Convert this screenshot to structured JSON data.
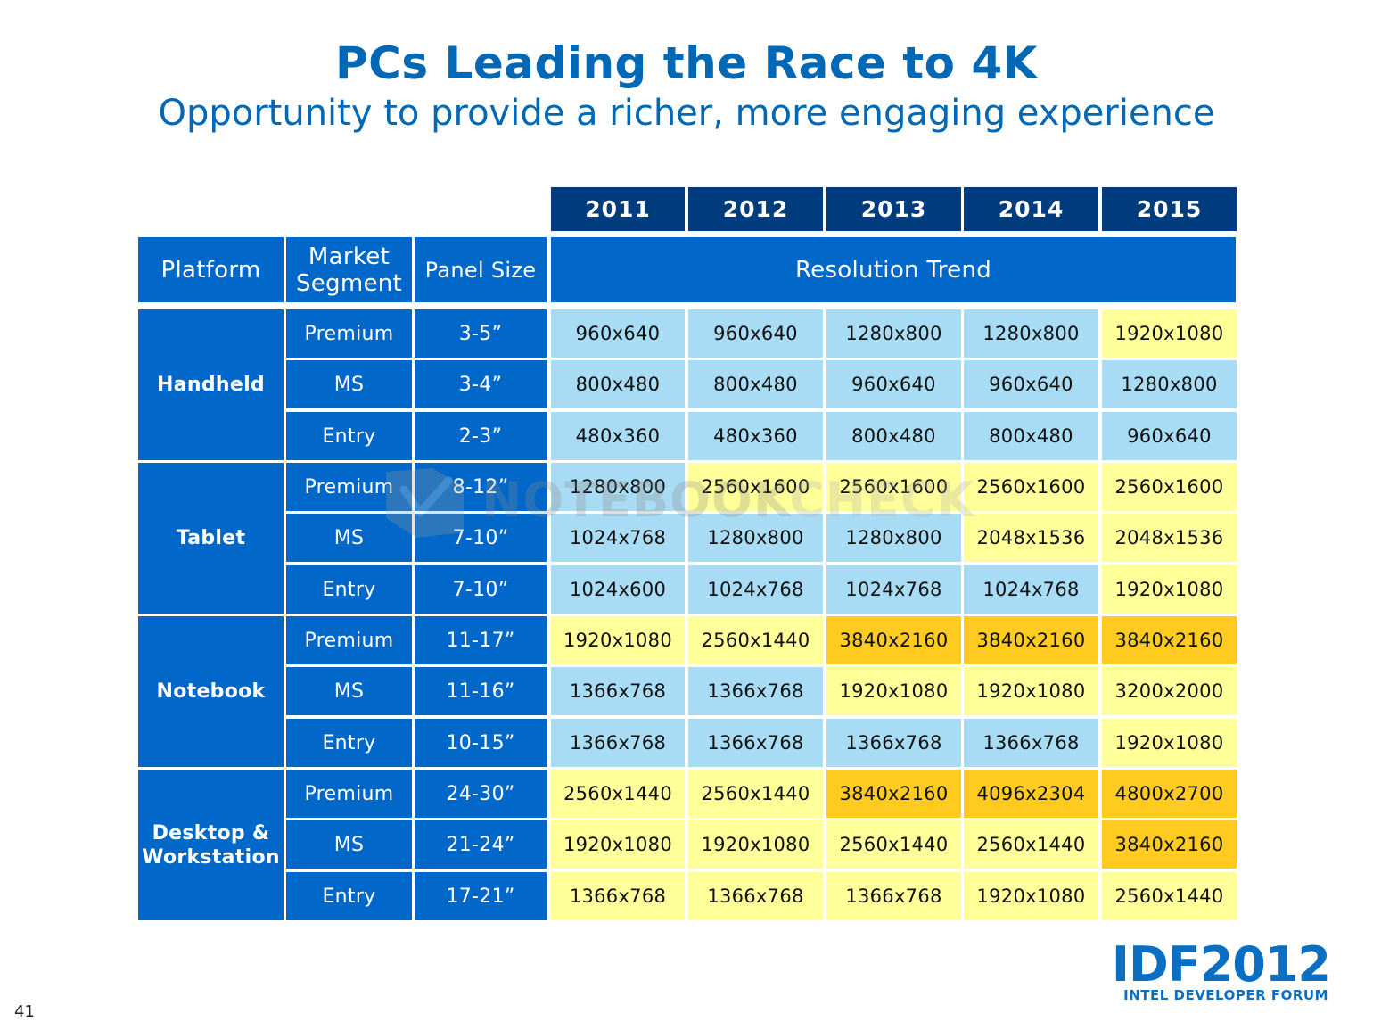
{
  "title": "PCs Leading the Race to 4K",
  "subtitle": "Opportunity to provide a richer, more engaging experience",
  "years": [
    "2011",
    "2012",
    "2013",
    "2014",
    "2015"
  ],
  "headers": {
    "platform": "Platform",
    "segment": "Market Segment",
    "panel": "Panel Size",
    "trend": "Resolution Trend"
  },
  "colors": {
    "blue": "#a8dcf4",
    "yellow": "#ffff99",
    "orange": "#ffcb21",
    "header": "#0168c9",
    "year_header": "#003c7e"
  },
  "platforms": [
    {
      "name": "Handheld",
      "rows": [
        {
          "segment": "Premium",
          "panel": "3-5”",
          "values": [
            "960x640",
            "960x640",
            "1280x800",
            "1280x800",
            "1920x1080"
          ],
          "colors": [
            "blue",
            "blue",
            "blue",
            "blue",
            "yellow"
          ]
        },
        {
          "segment": "MS",
          "panel": "3-4”",
          "values": [
            "800x480",
            "800x480",
            "960x640",
            "960x640",
            "1280x800"
          ],
          "colors": [
            "blue",
            "blue",
            "blue",
            "blue",
            "blue"
          ]
        },
        {
          "segment": "Entry",
          "panel": "2-3”",
          "values": [
            "480x360",
            "480x360",
            "800x480",
            "800x480",
            "960x640"
          ],
          "colors": [
            "blue",
            "blue",
            "blue",
            "blue",
            "blue"
          ]
        }
      ]
    },
    {
      "name": "Tablet",
      "rows": [
        {
          "segment": "Premium",
          "panel": "8-12”",
          "values": [
            "1280x800",
            "2560x1600",
            "2560x1600",
            "2560x1600",
            "2560x1600"
          ],
          "colors": [
            "blue",
            "yellow",
            "yellow",
            "yellow",
            "yellow"
          ]
        },
        {
          "segment": "MS",
          "panel": "7-10”",
          "values": [
            "1024x768",
            "1280x800",
            "1280x800",
            "2048x1536",
            "2048x1536"
          ],
          "colors": [
            "blue",
            "blue",
            "blue",
            "yellow",
            "yellow"
          ]
        },
        {
          "segment": "Entry",
          "panel": "7-10”",
          "values": [
            "1024x600",
            "1024x768",
            "1024x768",
            "1024x768",
            "1920x1080"
          ],
          "colors": [
            "blue",
            "blue",
            "blue",
            "blue",
            "yellow"
          ]
        }
      ]
    },
    {
      "name": "Notebook",
      "rows": [
        {
          "segment": "Premium",
          "panel": "11-17”",
          "values": [
            "1920x1080",
            "2560x1440",
            "3840x2160",
            "3840x2160",
            "3840x2160"
          ],
          "colors": [
            "yellow",
            "yellow",
            "orange",
            "orange",
            "orange"
          ]
        },
        {
          "segment": "MS",
          "panel": "11-16”",
          "values": [
            "1366x768",
            "1366x768",
            "1920x1080",
            "1920x1080",
            "3200x2000"
          ],
          "colors": [
            "blue",
            "blue",
            "yellow",
            "yellow",
            "yellow"
          ]
        },
        {
          "segment": "Entry",
          "panel": "10-15”",
          "values": [
            "1366x768",
            "1366x768",
            "1366x768",
            "1366x768",
            "1920x1080"
          ],
          "colors": [
            "blue",
            "blue",
            "blue",
            "blue",
            "yellow"
          ]
        }
      ]
    },
    {
      "name": "Desktop & Workstation",
      "rows": [
        {
          "segment": "Premium",
          "panel": "24-30”",
          "values": [
            "2560x1440",
            "2560x1440",
            "3840x2160",
            "4096x2304",
            "4800x2700"
          ],
          "colors": [
            "yellow",
            "yellow",
            "orange",
            "orange",
            "orange"
          ]
        },
        {
          "segment": "MS",
          "panel": "21-24”",
          "values": [
            "1920x1080",
            "1920x1080",
            "2560x1440",
            "2560x1440",
            "3840x2160"
          ],
          "colors": [
            "yellow",
            "yellow",
            "yellow",
            "yellow",
            "orange"
          ]
        },
        {
          "segment": "Entry",
          "panel": "17-21”",
          "values": [
            "1366x768",
            "1366x768",
            "1366x768",
            "1920x1080",
            "2560x1440"
          ],
          "colors": [
            "yellow",
            "yellow",
            "yellow",
            "yellow",
            "yellow"
          ]
        }
      ]
    }
  ],
  "watermark": "NOTEBOOKCHECK",
  "logo": {
    "main": "IDF2012",
    "sub": "INTEL DEVELOPER FORUM"
  },
  "page_number": "41"
}
